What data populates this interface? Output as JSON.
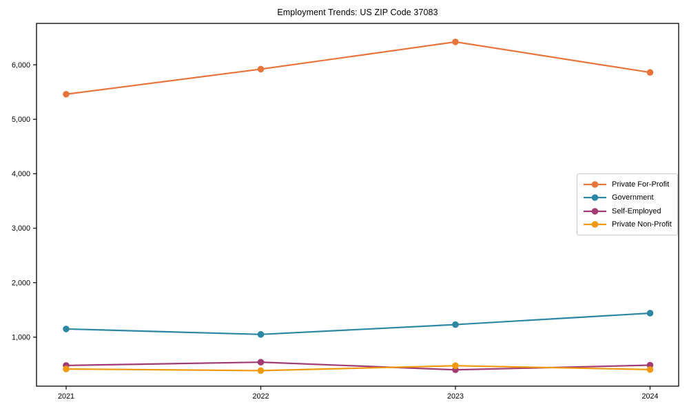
{
  "chart_data": {
    "type": "line",
    "title": "Employment Trends: US ZIP Code 37083",
    "categories": [
      "2021",
      "2022",
      "2023",
      "2024"
    ],
    "series": [
      {
        "name": "Private For-Profit",
        "color": "#e8743b",
        "values": [
          5460,
          5920,
          6420,
          5860
        ]
      },
      {
        "name": "Government",
        "color": "#2b87a2",
        "values": [
          1150,
          1050,
          1230,
          1440
        ]
      },
      {
        "name": "Self-Employed",
        "color": "#a23b72",
        "values": [
          480,
          540,
          400,
          485
        ]
      },
      {
        "name": "Private Non-Profit",
        "color": "#f0990e",
        "values": [
          415,
          385,
          475,
          405
        ]
      }
    ],
    "xlabel": "",
    "ylabel": "",
    "ylim": [
      100,
      6760
    ],
    "yticks": [
      1000,
      2000,
      3000,
      4000,
      5000,
      6000
    ],
    "ytick_labels": [
      "1,000",
      "2,000",
      "3,000",
      "4,000",
      "5,000",
      "6,000"
    ],
    "grid": false,
    "legend_position": "center-right",
    "background_color": "#ffffff",
    "axis_color": "#000000",
    "marker": "circle"
  }
}
